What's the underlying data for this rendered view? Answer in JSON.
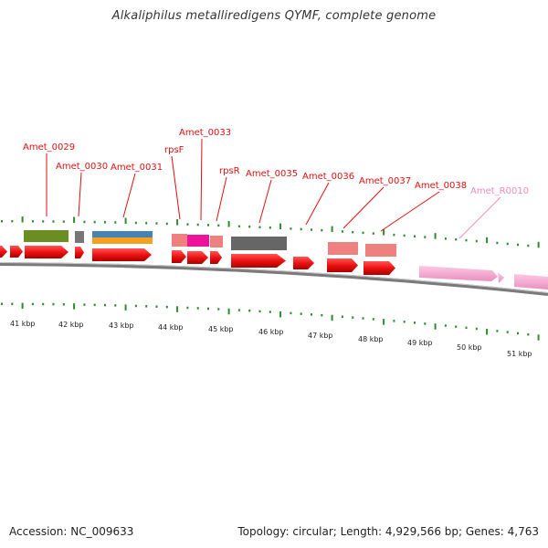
{
  "title": "Alkaliphilus metalliredigens QYMF, complete genome",
  "footer": {
    "accession": "Accession: NC_009633",
    "summary": "Topology: circular; Length: 4,929,566 bp; Genes: 4,763"
  },
  "colors": {
    "ticks": "#2e8b2e",
    "backbone": "#7a7a7a",
    "cds": "#ee1111",
    "rrna": "#f4a0cc",
    "label": "#dd1111",
    "label_rna": "#f08cbf",
    "cog_green": "#6b8e23",
    "cog_blue": "#4682b4",
    "cog_orange": "#f4a020",
    "cog_grey": "#666666",
    "cog_salmon": "#ee8080",
    "cog_magenta": "#ee1199"
  },
  "scale_labels": [
    "41 kbp",
    "42 kbp",
    "43 kbp",
    "44 kbp",
    "45 kbp",
    "46 kbp",
    "47 kbp",
    "48 kbp",
    "49 kbp",
    "50 kbp",
    "51 kbp"
  ],
  "gene_labels": [
    {
      "text": "Amet_0029",
      "type": "cds"
    },
    {
      "text": "Amet_0030",
      "type": "cds"
    },
    {
      "text": "Amet_0031",
      "type": "cds"
    },
    {
      "text": "rpsF",
      "type": "cds"
    },
    {
      "text": "Amet_0033",
      "type": "cds"
    },
    {
      "text": "rpsR",
      "type": "cds"
    },
    {
      "text": "Amet_0035",
      "type": "cds"
    },
    {
      "text": "Amet_0036",
      "type": "cds"
    },
    {
      "text": "Amet_0037",
      "type": "cds"
    },
    {
      "text": "Amet_0038",
      "type": "cds"
    },
    {
      "text": "Amet_R0010",
      "type": "rna"
    }
  ]
}
